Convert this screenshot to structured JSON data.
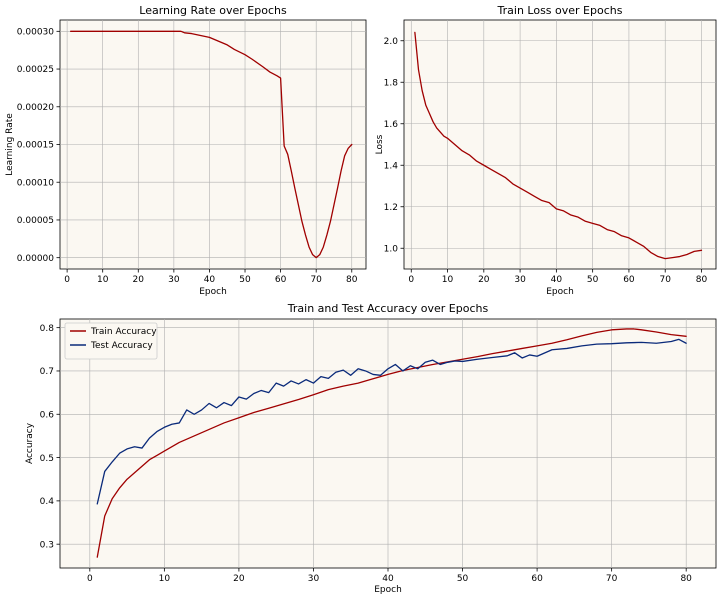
{
  "chart_data": [
    {
      "id": "lr",
      "type": "line",
      "title": "Learning Rate over Epochs",
      "xlabel": "Epoch",
      "ylabel": "Learning Rate",
      "xlim": [
        -2.0,
        84.0
      ],
      "ylim": [
        -1.5e-05,
        0.000315
      ],
      "xticks": [
        0,
        10,
        20,
        30,
        40,
        50,
        60,
        70,
        80
      ],
      "xtick_labels": [
        "0",
        "10",
        "20",
        "30",
        "40",
        "50",
        "60",
        "70",
        "80"
      ],
      "yticks": [
        0,
        5e-05,
        0.0001,
        0.00015,
        0.0002,
        0.00025,
        0.0003
      ],
      "ytick_labels": [
        "0.00000",
        "0.00005",
        "0.00010",
        "0.00015",
        "0.00020",
        "0.00025",
        "0.00030"
      ],
      "grid": true,
      "series": [
        {
          "name": "Learning Rate",
          "color": "#a00000",
          "x": [
            1,
            5,
            10,
            15,
            20,
            25,
            30,
            32,
            33,
            35,
            37,
            40,
            42,
            45,
            47,
            50,
            52,
            55,
            57,
            59,
            60,
            61,
            62,
            63,
            64,
            65,
            66,
            67,
            68,
            69,
            70,
            71,
            72,
            73,
            74,
            75,
            76,
            77,
            78,
            79,
            80
          ],
          "y": [
            0.0003,
            0.0003,
            0.0003,
            0.0003,
            0.0003,
            0.0003,
            0.0003,
            0.0003,
            0.000298,
            0.000297,
            0.000295,
            0.000292,
            0.000288,
            0.000282,
            0.000276,
            0.000269,
            0.000263,
            0.000253,
            0.000246,
            0.000241,
            0.000238,
            0.000148,
            0.000137,
            0.000115,
            9.2e-05,
            7e-05,
            4.8e-05,
            3e-05,
            1.4e-05,
            4e-06,
            0.0,
            4e-06,
            1.4e-05,
            3e-05,
            4.8e-05,
            7e-05,
            9.2e-05,
            0.000115,
            0.000135,
            0.000145,
            0.00015
          ]
        }
      ]
    },
    {
      "id": "loss",
      "type": "line",
      "title": "Train Loss over Epochs",
      "xlabel": "Epoch",
      "ylabel": "Loss",
      "xlim": [
        -2.0,
        84.0
      ],
      "ylim": [
        0.9,
        2.1
      ],
      "xticks": [
        0,
        10,
        20,
        30,
        40,
        50,
        60,
        70,
        80
      ],
      "xtick_labels": [
        "0",
        "10",
        "20",
        "30",
        "40",
        "50",
        "60",
        "70",
        "80"
      ],
      "yticks": [
        1.0,
        1.2,
        1.4,
        1.6,
        1.8,
        2.0
      ],
      "ytick_labels": [
        "1.0",
        "1.2",
        "1.4",
        "1.6",
        "1.8",
        "2.0"
      ],
      "grid": true,
      "series": [
        {
          "name": "Train Loss",
          "color": "#a00000",
          "x": [
            1,
            2,
            3,
            4,
            5,
            6,
            7,
            8,
            9,
            10,
            12,
            14,
            16,
            18,
            20,
            22,
            24,
            26,
            28,
            30,
            32,
            34,
            36,
            38,
            40,
            42,
            44,
            46,
            48,
            50,
            52,
            54,
            56,
            58,
            60,
            62,
            64,
            66,
            68,
            70,
            72,
            74,
            76,
            78,
            80
          ],
          "y": [
            2.04,
            1.86,
            1.76,
            1.69,
            1.65,
            1.61,
            1.58,
            1.56,
            1.54,
            1.53,
            1.5,
            1.47,
            1.45,
            1.42,
            1.4,
            1.38,
            1.36,
            1.34,
            1.31,
            1.29,
            1.27,
            1.25,
            1.23,
            1.22,
            1.19,
            1.18,
            1.16,
            1.15,
            1.13,
            1.12,
            1.11,
            1.09,
            1.08,
            1.06,
            1.05,
            1.03,
            1.01,
            0.98,
            0.96,
            0.95,
            0.955,
            0.96,
            0.97,
            0.985,
            0.99
          ]
        }
      ]
    },
    {
      "id": "acc",
      "type": "line",
      "title": "Train and Test Accuracy over Epochs",
      "xlabel": "Epoch",
      "ylabel": "Accuracy",
      "xlim": [
        -4.0,
        84.0
      ],
      "ylim": [
        0.245,
        0.82
      ],
      "xticks": [
        0,
        10,
        20,
        30,
        40,
        50,
        60,
        70,
        80
      ],
      "xtick_labels": [
        "0",
        "10",
        "20",
        "30",
        "40",
        "50",
        "60",
        "70",
        "80"
      ],
      "yticks": [
        0.3,
        0.4,
        0.5,
        0.6,
        0.7,
        0.8
      ],
      "ytick_labels": [
        "0.3",
        "0.4",
        "0.5",
        "0.6",
        "0.7",
        "0.8"
      ],
      "grid": true,
      "legend": "upper-left",
      "series": [
        {
          "name": "Train Accuracy",
          "color": "#a00000",
          "x": [
            1,
            2,
            3,
            4,
            5,
            6,
            7,
            8,
            9,
            10,
            12,
            14,
            16,
            18,
            20,
            22,
            24,
            26,
            28,
            30,
            32,
            34,
            36,
            38,
            40,
            42,
            44,
            46,
            48,
            50,
            52,
            54,
            56,
            58,
            60,
            62,
            64,
            66,
            68,
            70,
            72,
            73,
            74,
            76,
            78,
            80
          ],
          "y": [
            0.27,
            0.365,
            0.405,
            0.43,
            0.45,
            0.465,
            0.48,
            0.495,
            0.505,
            0.515,
            0.535,
            0.55,
            0.565,
            0.58,
            0.592,
            0.604,
            0.614,
            0.624,
            0.634,
            0.645,
            0.657,
            0.665,
            0.672,
            0.682,
            0.692,
            0.701,
            0.708,
            0.715,
            0.721,
            0.727,
            0.733,
            0.74,
            0.746,
            0.752,
            0.758,
            0.764,
            0.772,
            0.781,
            0.789,
            0.795,
            0.797,
            0.797,
            0.795,
            0.79,
            0.784,
            0.78
          ]
        },
        {
          "name": "Test Accuracy",
          "color": "#0a2a7a",
          "x": [
            1,
            2,
            3,
            4,
            5,
            6,
            7,
            8,
            9,
            10,
            11,
            12,
            13,
            14,
            15,
            16,
            17,
            18,
            19,
            20,
            21,
            22,
            23,
            24,
            25,
            26,
            27,
            28,
            29,
            30,
            31,
            32,
            33,
            34,
            35,
            36,
            37,
            38,
            39,
            40,
            41,
            42,
            43,
            44,
            45,
            46,
            47,
            48,
            49,
            50,
            52,
            54,
            56,
            57,
            58,
            59,
            60,
            62,
            64,
            66,
            68,
            70,
            72,
            74,
            76,
            78,
            79,
            80
          ],
          "y": [
            0.393,
            0.468,
            0.49,
            0.51,
            0.52,
            0.525,
            0.522,
            0.545,
            0.56,
            0.57,
            0.577,
            0.58,
            0.61,
            0.6,
            0.61,
            0.625,
            0.615,
            0.627,
            0.62,
            0.64,
            0.635,
            0.648,
            0.655,
            0.65,
            0.672,
            0.665,
            0.677,
            0.67,
            0.68,
            0.672,
            0.687,
            0.683,
            0.697,
            0.702,
            0.69,
            0.705,
            0.7,
            0.692,
            0.69,
            0.705,
            0.715,
            0.7,
            0.712,
            0.705,
            0.72,
            0.725,
            0.715,
            0.72,
            0.723,
            0.722,
            0.727,
            0.731,
            0.735,
            0.742,
            0.73,
            0.737,
            0.734,
            0.749,
            0.752,
            0.758,
            0.762,
            0.763,
            0.765,
            0.766,
            0.764,
            0.768,
            0.773,
            0.764
          ]
        }
      ]
    }
  ]
}
